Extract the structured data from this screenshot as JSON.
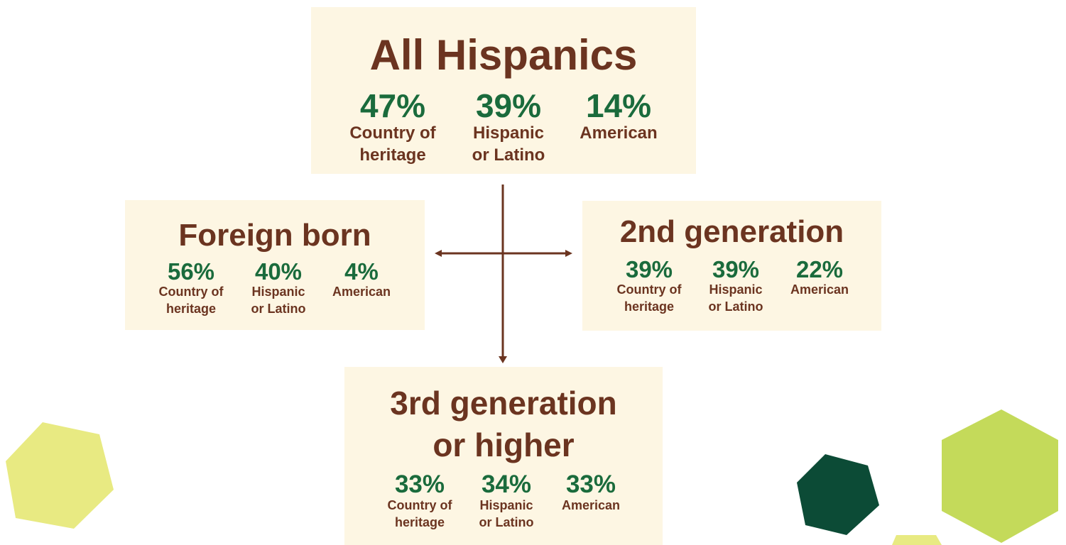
{
  "boxes": [
    {
      "title": [
        "All Hispanics"
      ],
      "stats": [
        {
          "value": "47%",
          "label": [
            "Country of",
            "heritage"
          ]
        },
        {
          "value": "39%",
          "label": [
            "Hispanic",
            "or Latino"
          ]
        },
        {
          "value": "14%",
          "label": [
            "American"
          ]
        }
      ]
    },
    {
      "title": [
        "Foreign born"
      ],
      "stats": [
        {
          "value": "56%",
          "label": [
            "Country of",
            "heritage"
          ]
        },
        {
          "value": "40%",
          "label": [
            "Hispanic",
            "or Latino"
          ]
        },
        {
          "value": "4%",
          "label": [
            "American"
          ]
        }
      ]
    },
    {
      "title": [
        "2nd generation"
      ],
      "stats": [
        {
          "value": "39%",
          "label": [
            "Country of",
            "heritage"
          ]
        },
        {
          "value": "39%",
          "label": [
            "Hispanic",
            "or Latino"
          ]
        },
        {
          "value": "22%",
          "label": [
            "American"
          ]
        }
      ]
    },
    {
      "title": [
        "3rd generation",
        "or higher"
      ],
      "stats": [
        {
          "value": "33%",
          "label": [
            "Country of",
            "heritage"
          ]
        },
        {
          "value": "34%",
          "label": [
            "Hispanic",
            "or Latino"
          ]
        },
        {
          "value": "33%",
          "label": [
            "American"
          ]
        }
      ]
    }
  ]
}
